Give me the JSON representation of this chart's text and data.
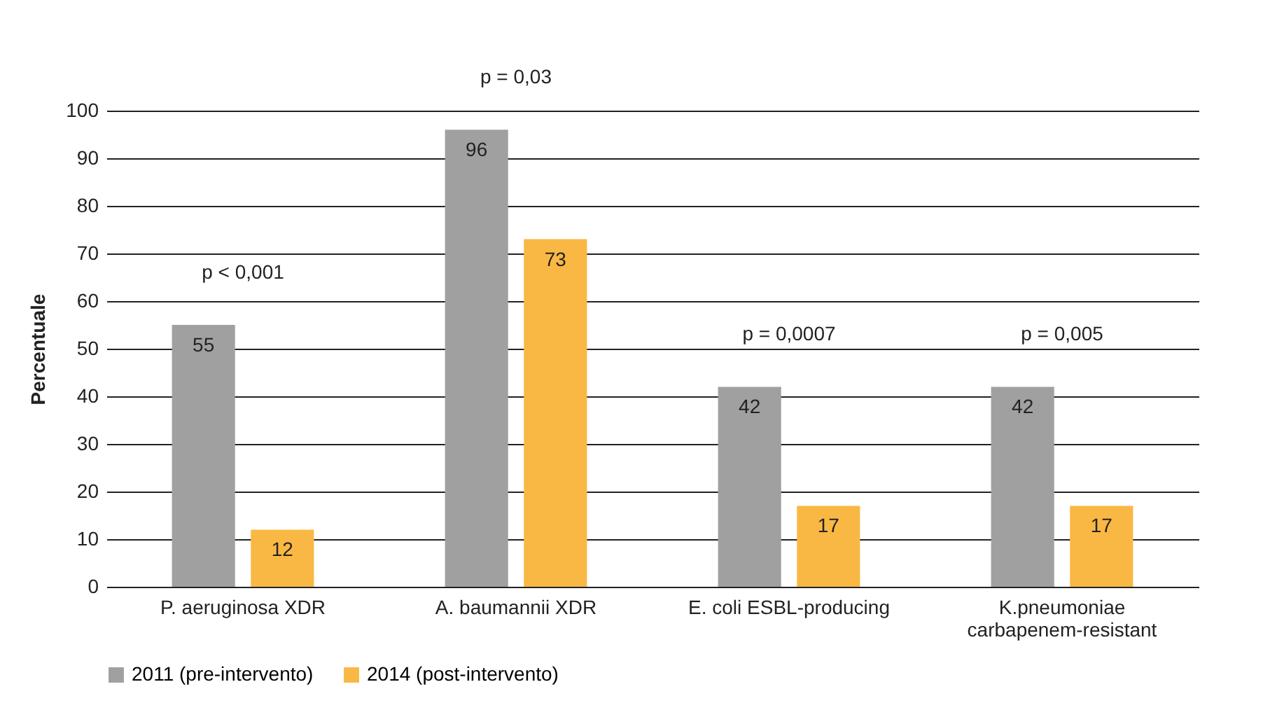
{
  "chart_data": {
    "type": "bar",
    "ylabel": "Percentuale",
    "categories": [
      "P. aeruginosa XDR",
      "A. baumannii XDR",
      "E. coli ESBL-producing",
      "K.pneumoniae carbapenem-resistant"
    ],
    "series": [
      {
        "name": "2011 (pre-intervento)",
        "color": "#a0a0a0",
        "values": [
          55,
          96,
          42,
          42
        ]
      },
      {
        "name": "2014 (post-intervento)",
        "color": "#f9b843",
        "values": [
          12,
          73,
          17,
          17
        ]
      }
    ],
    "ylim": [
      0,
      100
    ],
    "yticks": [
      0,
      10,
      20,
      30,
      40,
      50,
      60,
      70,
      80,
      90,
      100
    ],
    "grid": "y",
    "legend": "bottom",
    "data_labels": true,
    "annotations": [
      "p < 0,001",
      "p = 0,03",
      "p = 0,0007",
      "p = 0,005"
    ]
  }
}
